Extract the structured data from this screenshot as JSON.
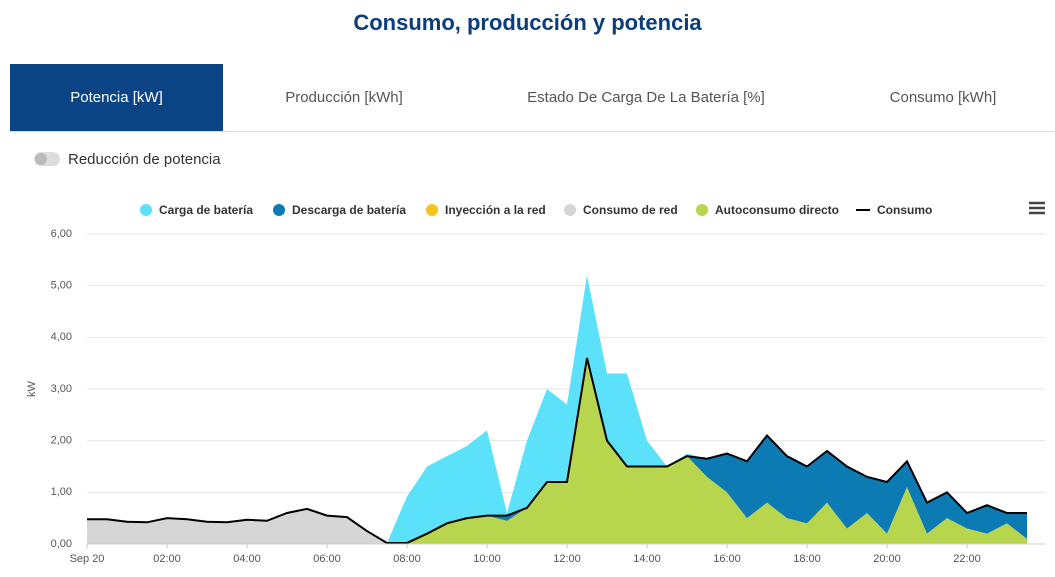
{
  "header": {
    "title": "Consumo, producción y potencia"
  },
  "tabs": [
    "Potencia [kW]",
    "Producción [kWh]",
    "Estado De Carga De La Batería [%]",
    "Consumo [kWh]"
  ],
  "toggle": {
    "label": "Reducción de potencia"
  },
  "chart_data": {
    "type": "area",
    "y_label": "kW",
    "x": [
      0,
      0.5,
      1,
      1.5,
      2,
      2.5,
      3,
      3.5,
      4,
      4.5,
      5,
      5.5,
      6,
      6.5,
      7,
      7.5,
      8,
      8.5,
      9,
      9.5,
      10,
      10.5,
      11,
      11.5,
      12,
      12.5,
      13,
      13.5,
      14,
      14.5,
      15,
      15.5,
      16,
      16.5,
      17,
      17.5,
      18,
      18.5,
      19,
      19.5,
      20,
      20.5,
      21,
      21.5,
      22,
      22.5,
      23,
      23.5
    ],
    "xlim": [
      0,
      23.95
    ],
    "xticks": [
      {
        "value": 0,
        "label": "Sep 20"
      },
      {
        "value": 2,
        "label": "02:00"
      },
      {
        "value": 4,
        "label": "04:00"
      },
      {
        "value": 6,
        "label": "06:00"
      },
      {
        "value": 8,
        "label": "08:00"
      },
      {
        "value": 10,
        "label": "10:00"
      },
      {
        "value": 12,
        "label": "12:00"
      },
      {
        "value": 14,
        "label": "14:00"
      },
      {
        "value": 16,
        "label": "16:00"
      },
      {
        "value": 18,
        "label": "18:00"
      },
      {
        "value": 20,
        "label": "20:00"
      },
      {
        "value": 22,
        "label": "22:00"
      }
    ],
    "ylim": [
      0,
      6
    ],
    "yticks": [
      {
        "value": 0,
        "label": "0,00"
      },
      {
        "value": 1,
        "label": "1,00"
      },
      {
        "value": 2,
        "label": "2,00"
      },
      {
        "value": 3,
        "label": "3,00"
      },
      {
        "value": 4,
        "label": "4,00"
      },
      {
        "value": 5,
        "label": "5,00"
      },
      {
        "value": 6,
        "label": "6,00"
      }
    ],
    "grid": true,
    "stacked": true,
    "series": [
      {
        "name": "Carga de batería",
        "color": "#5ce1fa",
        "values": [
          0,
          0,
          0,
          0,
          0,
          0,
          0,
          0,
          0,
          0,
          0,
          0,
          0,
          0,
          0,
          0,
          0.9,
          1.3,
          1.3,
          1.4,
          1.65,
          0.05,
          1.3,
          1.8,
          1.5,
          1.6,
          1.3,
          1.8,
          0.5,
          0,
          0.05,
          0,
          0,
          0,
          0,
          0,
          0,
          0,
          0,
          0,
          0,
          0,
          0,
          0,
          0,
          0,
          0,
          0
        ]
      },
      {
        "name": "Descarga de batería",
        "color": "#0c7bb4",
        "values": [
          0,
          0,
          0,
          0,
          0,
          0,
          0,
          0,
          0,
          0,
          0,
          0,
          0,
          0,
          0,
          0,
          0,
          0,
          0,
          0,
          0,
          0.1,
          0,
          0,
          0,
          0,
          0,
          0,
          0,
          0,
          0,
          0.35,
          0.75,
          1.1,
          1.3,
          1.2,
          1.1,
          1.0,
          1.2,
          0.7,
          1.0,
          0.5,
          0.6,
          0.5,
          0.3,
          0.55,
          0.2,
          0.5
        ]
      },
      {
        "name": "Inyección a la red",
        "color": "#f6c21c",
        "values": [
          0,
          0,
          0,
          0,
          0,
          0,
          0,
          0,
          0,
          0,
          0,
          0,
          0,
          0,
          0,
          0,
          0,
          0,
          0,
          0,
          0,
          0,
          0,
          0,
          0,
          0,
          0,
          0,
          0,
          0,
          0,
          0,
          0,
          0,
          0,
          0,
          0,
          0,
          0,
          0,
          0,
          0,
          0,
          0,
          0,
          0,
          0,
          0
        ]
      },
      {
        "name": "Consumo de red",
        "color": "#d6d6d6",
        "values": [
          0.48,
          0.48,
          0.43,
          0.42,
          0.5,
          0.48,
          0.43,
          0.42,
          0.47,
          0.45,
          0.6,
          0.68,
          0.55,
          0.52,
          0.25,
          0.02,
          0,
          0,
          0,
          0,
          0,
          0,
          0,
          0,
          0,
          0,
          0,
          0,
          0,
          0,
          0,
          0,
          0,
          0,
          0,
          0,
          0,
          0,
          0,
          0,
          0,
          0,
          0,
          0,
          0,
          0,
          0,
          0
        ]
      },
      {
        "name": "Autoconsumo directo",
        "color": "#b8d64d",
        "values": [
          0,
          0,
          0,
          0,
          0,
          0,
          0,
          0,
          0,
          0,
          0,
          0,
          0,
          0,
          0,
          0,
          0.02,
          0.2,
          0.4,
          0.5,
          0.55,
          0.45,
          0.7,
          1.2,
          1.2,
          3.6,
          2.0,
          1.5,
          1.5,
          1.5,
          1.7,
          1.3,
          1.0,
          0.5,
          0.8,
          0.5,
          0.4,
          0.8,
          0.3,
          0.6,
          0.2,
          1.1,
          0.2,
          0.5,
          0.3,
          0.2,
          0.4,
          0.1
        ]
      },
      {
        "name": "Consumo",
        "color": "#000000",
        "type": "line",
        "values": [
          0.48,
          0.48,
          0.43,
          0.42,
          0.5,
          0.48,
          0.43,
          0.42,
          0.47,
          0.45,
          0.6,
          0.68,
          0.55,
          0.52,
          0.25,
          0.02,
          0.02,
          0.2,
          0.4,
          0.5,
          0.55,
          0.55,
          0.7,
          1.2,
          1.2,
          3.6,
          2.0,
          1.5,
          1.5,
          1.5,
          1.7,
          1.65,
          1.75,
          1.6,
          2.1,
          1.7,
          1.5,
          1.8,
          1.5,
          1.3,
          1.2,
          1.6,
          0.8,
          1.0,
          0.6,
          0.75,
          0.6,
          0.6
        ]
      }
    ]
  }
}
